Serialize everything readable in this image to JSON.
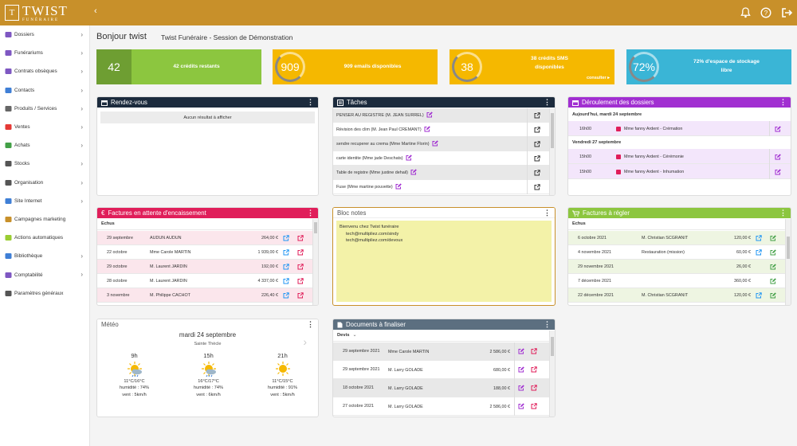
{
  "topbar": {
    "logo_mark": "T",
    "logo_main": "TWIST",
    "logo_sub": "FUNÉRAIRE",
    "icons": [
      "bell-icon",
      "help-icon",
      "logout-icon"
    ]
  },
  "sidebar": {
    "items": [
      {
        "label": "Dossiers",
        "icon": "folder-icon",
        "color": "#7e57c2",
        "chevron": true
      },
      {
        "label": "Funérariums",
        "icon": "bed-icon",
        "color": "#7e57c2",
        "chevron": true
      },
      {
        "label": "Contrats obsèques",
        "icon": "contract-icon",
        "color": "#7e57c2",
        "chevron": true
      },
      {
        "label": "Contacts",
        "icon": "user-icon",
        "color": "#3f7fd6",
        "chevron": true
      },
      {
        "label": "Produits / Services",
        "icon": "barcode-icon",
        "color": "#666666",
        "chevron": true
      },
      {
        "label": "Ventes",
        "icon": "euro-icon",
        "color": "#e53935",
        "chevron": true
      },
      {
        "label": "Achats",
        "icon": "cart-icon",
        "color": "#43a047",
        "chevron": true
      },
      {
        "label": "Stocks",
        "icon": "cubes-icon",
        "color": "#555555",
        "chevron": true
      },
      {
        "label": "Organisation",
        "icon": "calendar-icon",
        "color": "#555555",
        "chevron": true
      },
      {
        "label": "Site Internet",
        "icon": "globe-icon",
        "color": "#3f7fd6",
        "chevron": true
      },
      {
        "label": "Campagnes marketing",
        "icon": "megaphone-icon",
        "color": "#c8902a",
        "chevron": false
      },
      {
        "label": "Actions automatiques",
        "icon": "bolt-icon",
        "color": "#9acd32",
        "chevron": false
      },
      {
        "label": "Bibliothèque",
        "icon": "book-icon",
        "color": "#3f7fd6",
        "chevron": true
      },
      {
        "label": "Comptabilité",
        "icon": "scale-icon",
        "color": "#7e57c2",
        "chevron": true
      },
      {
        "label": "Paramètres généraux",
        "icon": "gear-icon",
        "color": "#555555",
        "chevron": false
      }
    ]
  },
  "header": {
    "greeting": "Bonjour twist",
    "session": "Twist Funéraire - Session de Démonstration"
  },
  "tiles": [
    {
      "value": "42",
      "label": "42 crédits restants",
      "color": "#8cc63f",
      "dark": "#6e9e32"
    },
    {
      "value": "909",
      "label": "909 emails disponibles",
      "color": "#f5b800"
    },
    {
      "value": "38",
      "label": "38 crédits SMS disponibles",
      "link": "consulter",
      "color": "#f5b800"
    },
    {
      "value": "72%",
      "label": "72% d'espace de stockage libre",
      "color": "#3ab5d6"
    }
  ],
  "rdv": {
    "title": "Rendez-vous",
    "empty": "Aucun résultat à afficher",
    "color": "#1c2b3d"
  },
  "taches": {
    "title": "Tâches",
    "color": "#1c2b3d",
    "items": [
      "PENSER AU REGISTRE (M. JEAN SURREL)",
      "Révision des clim (M. Jean Paul CREMANT)",
      "sendre recuperer au crema (Mme Martine Florin)",
      "carte identite (Mme jade Deschats)",
      "Table de registre (Mme justine dehail)",
      "Fuse (Mme martine pouvette)"
    ]
  },
  "deroulement": {
    "title": "Déroulement des dossiers",
    "color": "#a12fd1",
    "groups": [
      {
        "day": "Aujourd'hui, mardi 24 septembre",
        "rows": [
          {
            "time": "16h00",
            "text": "Mme fanny Ardent - Crémation"
          }
        ]
      },
      {
        "day": "Vendredi 27 septembre",
        "rows": [
          {
            "time": "15h00",
            "text": "Mme fanny Ardent - Cérémonie"
          },
          {
            "time": "15h00",
            "text": "Mme fanny Ardent - Inhumation"
          }
        ]
      }
    ]
  },
  "factures_attente": {
    "title": "Factures en attente d'encaissement",
    "color": "#e01e5a",
    "group": "Echus",
    "rows": [
      {
        "date": "29 septembre",
        "name": "AUDUN AUDUN",
        "amount": "264,00 €"
      },
      {
        "date": "22 octobre",
        "name": "Mme Carole MARTIN",
        "amount": "1 939,00 €"
      },
      {
        "date": "29 octobre",
        "name": "M. Laurent JARDIN",
        "amount": "192,00 €"
      },
      {
        "date": "28 octobre",
        "name": "M. Laurent JARDIN",
        "amount": "4 337,00 €"
      },
      {
        "date": "3 novembre",
        "name": "M. Philippe CACHOT",
        "amount": "226,40 €"
      }
    ]
  },
  "bloc_notes": {
    "title": "Bloc notes",
    "lines": [
      "Bienvenu chez Twist funéraire",
      "tech@multipliez.com/sindy",
      "tech@multipliez.com/devoux"
    ]
  },
  "factures_regler": {
    "title": "Factures à régler",
    "color": "#8cc63f",
    "group": "Echus",
    "rows": [
      {
        "date": "6 octobre 2021",
        "name": "M. Christian SCGRANIT",
        "amount": "120,00 €"
      },
      {
        "date": "4 novembre 2021",
        "name": "Restauration (mission)",
        "amount": "60,00 €"
      },
      {
        "date": "29 novembre 2021",
        "name": "",
        "amount": "26,00 €"
      },
      {
        "date": "7 décembre 2021",
        "name": "",
        "amount": "360,00 €"
      },
      {
        "date": "22 décembre 2021",
        "name": "M. Christian SCGRANIT",
        "amount": "120,00 €"
      }
    ]
  },
  "meteo": {
    "title": "Météo",
    "date": "mardi 24 septembre",
    "saint": "Sainte Thècle",
    "slots": [
      {
        "hour": "9h",
        "temp": "11°C/16°C",
        "hum": "humidité : 74%",
        "wind": "vent : 5km/h",
        "icon": "sun-cloud-rain-icon"
      },
      {
        "hour": "15h",
        "temp": "16°C/17°C",
        "hum": "humidité : 74%",
        "wind": "vent : 6km/h",
        "icon": "sun-cloud-rain-icon"
      },
      {
        "hour": "21h",
        "temp": "11°C/15°C",
        "hum": "humidité : 91%",
        "wind": "vent : 5km/h",
        "icon": "sun-icon"
      }
    ]
  },
  "documents": {
    "title": "Documents à finaliser",
    "color": "#5c6f80",
    "filter": "Devis",
    "rows": [
      {
        "date": "29 septembre 2021",
        "name": "Mme Carole MARTIN",
        "amount": "2 586,00 €"
      },
      {
        "date": "29 septembre 2021",
        "name": "M. Larry GOLADE",
        "amount": "680,00 €"
      },
      {
        "date": "18 octobre 2021",
        "name": "M. Larry GOLADE",
        "amount": "188,00 €"
      },
      {
        "date": "27 octobre 2021",
        "name": "M. Larry GOLADE",
        "amount": "2 586,00 €"
      }
    ]
  }
}
